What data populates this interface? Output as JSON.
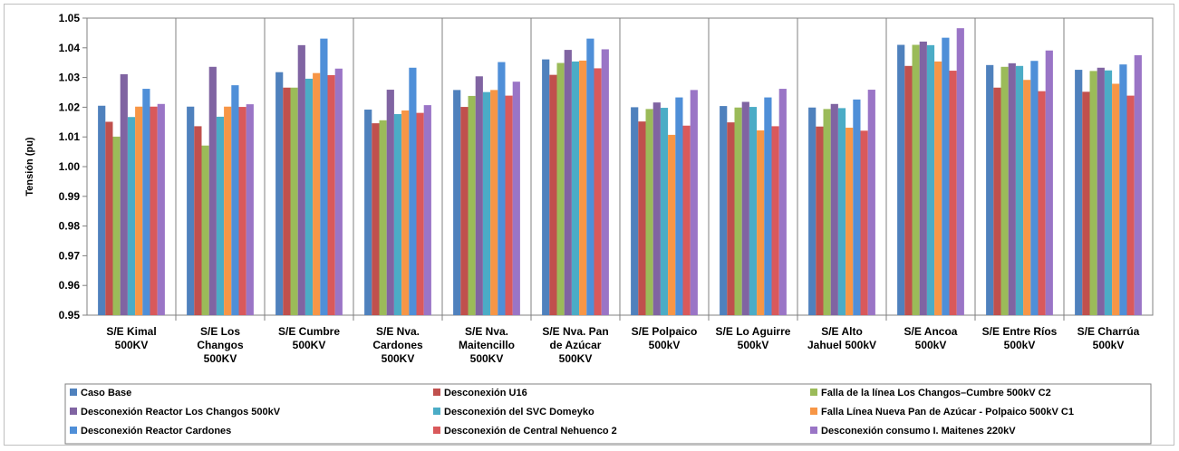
{
  "chart_data": {
    "type": "bar",
    "title": "",
    "xlabel": "",
    "ylabel": "Tensión (pu)",
    "ylim": [
      0.95,
      1.05
    ],
    "yticks": [
      "0.95",
      "0.96",
      "0.97",
      "0.98",
      "0.99",
      "1.00",
      "1.01",
      "1.02",
      "1.03",
      "1.04",
      "1.05"
    ],
    "grid": "vertical category separators",
    "legend_position": "bottom",
    "categories": [
      [
        "S/E Kimal",
        "500KV"
      ],
      [
        "S/E Los",
        "Changos",
        "500KV"
      ],
      [
        "S/E Cumbre",
        "500KV"
      ],
      [
        "S/E Nva.",
        "Cardones",
        "500KV"
      ],
      [
        "S/E Nva.",
        "Maitencillo",
        "500KV"
      ],
      [
        "S/E Nva. Pan",
        "de Azúcar",
        "500KV"
      ],
      [
        "S/E Polpaico",
        "500kV"
      ],
      [
        "S/E Lo Aguirre",
        "500kV"
      ],
      [
        "S/E Alto",
        "Jahuel 500kV"
      ],
      [
        "S/E Ancoa",
        "500kV"
      ],
      [
        "S/E Entre Ríos",
        "500kV"
      ],
      [
        "S/E Charrúa",
        "500kV"
      ]
    ],
    "series": [
      {
        "name": "Caso Base",
        "color": "#4F81BD",
        "values": [
          1.0205,
          1.0202,
          1.0318,
          1.0192,
          1.0258,
          1.0361,
          1.02,
          1.0204,
          1.0199,
          1.041,
          1.0342,
          1.0326
        ]
      },
      {
        "name": "Desconexión U16",
        "color": "#C0504D",
        "values": [
          1.0151,
          1.0136,
          1.0266,
          1.0146,
          1.0201,
          1.0309,
          1.0152,
          1.0149,
          1.0135,
          1.0339,
          1.0266,
          1.0252
        ]
      },
      {
        "name": "Falla de la línea Los Changos–Cumbre 500kV C2",
        "color": "#9BBB59",
        "values": [
          1.0101,
          1.0071,
          1.0266,
          1.0156,
          1.0238,
          1.0349,
          1.0194,
          1.0199,
          1.0194,
          1.041,
          1.0336,
          1.0322
        ]
      },
      {
        "name": "Desconexión Reactor Los Changos 500kV",
        "color": "#8064A2",
        "values": [
          1.0311,
          1.0336,
          1.0409,
          1.0259,
          1.0304,
          1.0393,
          1.0216,
          1.0218,
          1.0211,
          1.0421,
          1.0348,
          1.0333
        ]
      },
      {
        "name": "Desconexión del SVC Domeyko",
        "color": "#4BACC6",
        "values": [
          1.0167,
          1.0168,
          1.0296,
          1.0177,
          1.0251,
          1.0354,
          1.0198,
          1.0201,
          1.0197,
          1.0409,
          1.0339,
          1.0324
        ]
      },
      {
        "name": "Falla Línea Nueva Pan de Azúcar - Polpaico 500kV C1",
        "color": "#F79646",
        "values": [
          1.0202,
          1.0202,
          1.0315,
          1.0189,
          1.0258,
          1.0357,
          1.0107,
          1.0122,
          1.0131,
          1.0354,
          1.0292,
          1.0279
        ]
      },
      {
        "name": "Desconexión Reactor Cardones",
        "color": "#4F8FD8",
        "values": [
          1.0262,
          1.0274,
          1.0431,
          1.0333,
          1.0352,
          1.0431,
          1.0233,
          1.0233,
          1.0226,
          1.0434,
          1.0356,
          1.0344
        ]
      },
      {
        "name": "Desconexión de Central Nehuenco 2",
        "color": "#D9595B",
        "values": [
          1.0202,
          1.0201,
          1.0308,
          1.0181,
          1.0239,
          1.0331,
          1.0138,
          1.0136,
          1.0121,
          1.0323,
          1.0254,
          1.0239
        ]
      },
      {
        "name": "Desconexión consumo I. Maitenes 220kV",
        "color": "#9A75C6",
        "values": [
          1.0211,
          1.021,
          1.033,
          1.0207,
          1.0286,
          1.0395,
          1.0258,
          1.0262,
          1.0259,
          1.0466,
          1.0391,
          1.0375
        ]
      }
    ]
  }
}
